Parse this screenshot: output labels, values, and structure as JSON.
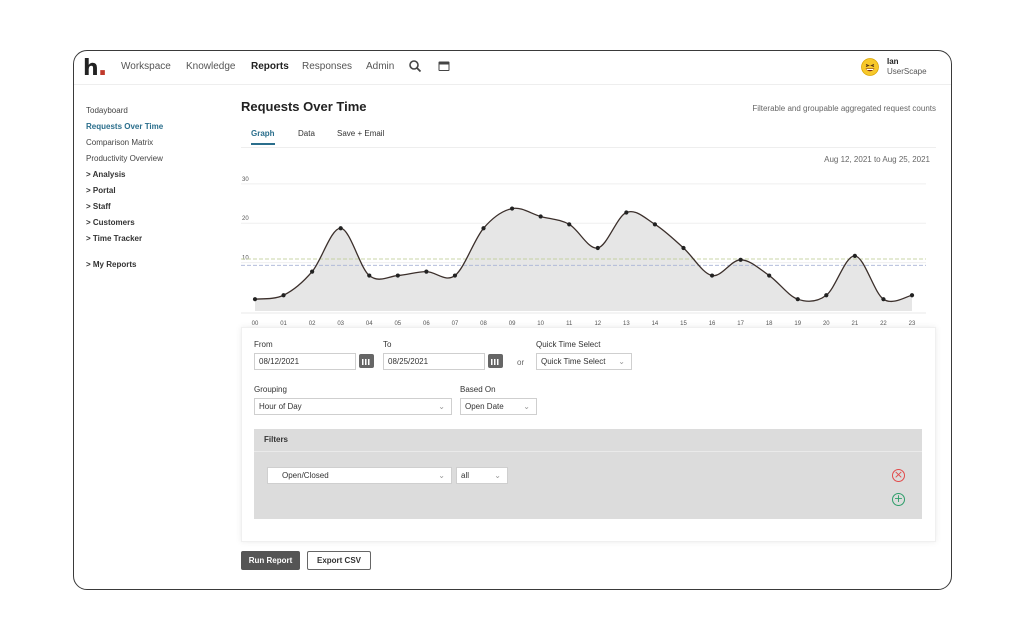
{
  "app": {
    "logo": "h",
    "logo_dot": "."
  },
  "nav": {
    "items": [
      "Workspace",
      "Knowledge",
      "Reports",
      "Responses",
      "Admin"
    ],
    "active": "Reports"
  },
  "icons": {
    "search": "search-icon",
    "calendar": "calendar-icon",
    "avatar": "grinning-emoji-avatar"
  },
  "user": {
    "name": "Ian",
    "org": "UserScape"
  },
  "sidebar": {
    "items": [
      {
        "label": "Todayboard"
      },
      {
        "label": "Requests Over Time"
      },
      {
        "label": "Comparison Matrix"
      },
      {
        "label": "Productivity Overview"
      }
    ],
    "groups": [
      "> Analysis",
      "> Portal",
      "> Staff",
      "> Customers",
      "> Time Tracker"
    ],
    "my_reports": "> My Reports"
  },
  "page": {
    "title": "Requests Over Time",
    "subtitle": "Filterable and groupable aggregated request counts",
    "tabs": [
      "Graph",
      "Data",
      "Save + Email"
    ],
    "date_range": "Aug 12, 2021 to Aug 25, 2021"
  },
  "chart_data": {
    "type": "area",
    "xlabel": "Hour of Day",
    "ylabel": "",
    "ylim": [
      0,
      33
    ],
    "yticks": [
      10,
      20,
      30
    ],
    "categories": [
      "00",
      "01",
      "02",
      "03",
      "04",
      "05",
      "06",
      "07",
      "08",
      "09",
      "10",
      "11",
      "12",
      "13",
      "14",
      "15",
      "16",
      "17",
      "18",
      "19",
      "20",
      "21",
      "22",
      "23"
    ],
    "values": [
      3,
      4,
      10,
      21,
      9,
      9,
      10,
      9,
      21,
      26,
      24,
      22,
      16,
      25,
      22,
      16,
      9,
      13,
      9,
      3,
      4,
      14,
      3,
      4
    ],
    "reference_lines": [
      13.2,
      11.6
    ],
    "grid": "horizontal"
  },
  "form": {
    "from_label": "From",
    "from_value": "08/12/2021",
    "to_label": "To",
    "to_value": "08/25/2021",
    "or_text": "or",
    "quick_label": "Quick Time Select",
    "quick_value": "Quick Time Select",
    "grouping_label": "Grouping",
    "grouping_value": "Hour of Day",
    "based_label": "Based On",
    "based_value": "Open Date"
  },
  "filters": {
    "title": "Filters",
    "field": "Open/Closed",
    "value": "all"
  },
  "colors": {
    "accent": "#2a6e8c",
    "remove": "#e24a4a",
    "add": "#2e9e6a",
    "line": "#3b2f2b"
  },
  "buttons": {
    "run": "Run Report",
    "export": "Export CSV"
  }
}
